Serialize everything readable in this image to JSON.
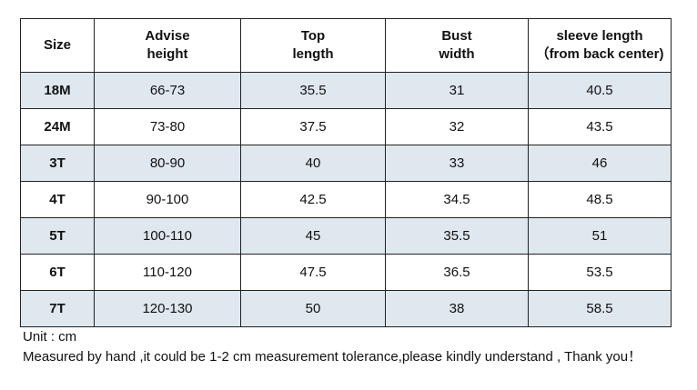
{
  "table": {
    "header": [
      [
        "Size"
      ],
      [
        "Advise",
        "height"
      ],
      [
        "Top",
        "length"
      ],
      [
        "Bust",
        "width"
      ],
      [
        "sleeve length",
        "（from back center)"
      ]
    ],
    "rows": [
      [
        "18M",
        "66-73",
        "35.5",
        "31",
        "40.5"
      ],
      [
        "24M",
        "73-80",
        "37.5",
        "32",
        "43.5"
      ],
      [
        "3T",
        "80-90",
        "40",
        "33",
        "46"
      ],
      [
        "4T",
        "90-100",
        "42.5",
        "34.5",
        "48.5"
      ],
      [
        "5T",
        "100-110",
        "45",
        "35.5",
        "51"
      ],
      [
        "6T",
        "110-120",
        "47.5",
        "36.5",
        "53.5"
      ],
      [
        "7T",
        "120-130",
        "50",
        "38",
        "58.5"
      ]
    ]
  },
  "notes": [
    "Unit : cm",
    "Measured by hand ,it could be 1-2 cm measurement tolerance,please kindly understand , Thank you！"
  ]
}
